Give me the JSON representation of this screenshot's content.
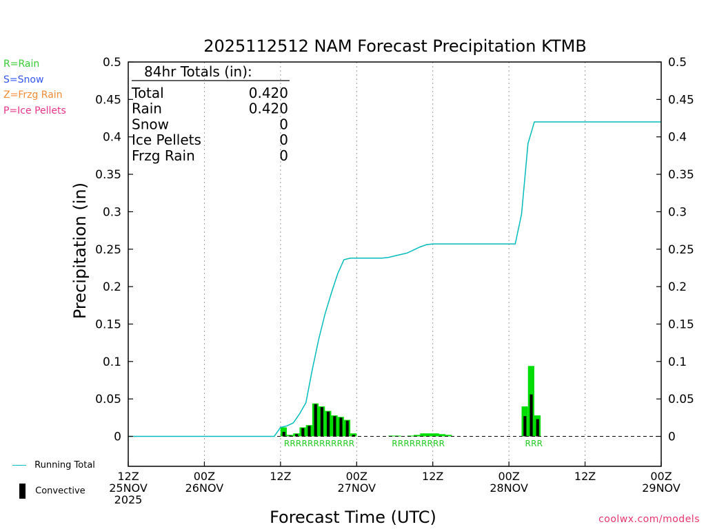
{
  "chart_data": {
    "type": "bar",
    "title": "2025112512 NAM Forecast Precipitation KTMB",
    "xlabel": "Forecast Time (UTC)",
    "ylabel": "Precipitation (in)",
    "ylim": [
      -0.04,
      0.5
    ],
    "yticks": [
      0,
      0.05,
      0.1,
      0.15,
      0.2,
      0.25,
      0.3,
      0.35,
      0.4,
      0.45,
      0.5
    ],
    "ytick_labels": [
      "0",
      "0.05",
      "0.1",
      "0.15",
      "0.2",
      "0.25",
      "0.3",
      "0.35",
      "0.4",
      "0.45",
      "0.5"
    ],
    "xlim_hours": [
      0,
      84
    ],
    "grid": "vertical dotted at each 12 h",
    "x_ticks": [
      {
        "hour": 0,
        "lines": [
          "12Z",
          "25NOV",
          "2025"
        ]
      },
      {
        "hour": 12,
        "lines": [
          "00Z",
          "26NOV"
        ]
      },
      {
        "hour": 24,
        "lines": [
          "12Z"
        ]
      },
      {
        "hour": 36,
        "lines": [
          "00Z",
          "27NOV"
        ]
      },
      {
        "hour": 48,
        "lines": [
          "12Z"
        ]
      },
      {
        "hour": 60,
        "lines": [
          "00Z",
          "28NOV"
        ]
      },
      {
        "hour": 72,
        "lines": [
          "12Z"
        ]
      },
      {
        "hour": 84,
        "lines": [
          "00Z",
          "29NOV"
        ]
      }
    ],
    "series": [
      {
        "name": "Rain",
        "color": "#00dd00",
        "points": [
          [
            24,
            0.012
          ],
          [
            25,
            0.002
          ],
          [
            26,
            0.004
          ],
          [
            27,
            0.012
          ],
          [
            28,
            0.015
          ],
          [
            29,
            0.044
          ],
          [
            30,
            0.04
          ],
          [
            31,
            0.034
          ],
          [
            32,
            0.028
          ],
          [
            33,
            0.026
          ],
          [
            34,
            0.022
          ],
          [
            35,
            0.004
          ],
          [
            41,
            0.001
          ],
          [
            42,
            0.001
          ],
          [
            44,
            0.001
          ],
          [
            45,
            0.002
          ],
          [
            46,
            0.004
          ],
          [
            47,
            0.004
          ],
          [
            48,
            0.004
          ],
          [
            49,
            0.003
          ],
          [
            50,
            0.002
          ],
          [
            62,
            0.04
          ],
          [
            63,
            0.094
          ],
          [
            64,
            0.028
          ]
        ]
      },
      {
        "name": "Convective",
        "color": "#000000",
        "points": [
          [
            24,
            0.006
          ],
          [
            25,
            0.001
          ],
          [
            26,
            0.003
          ],
          [
            27,
            0.011
          ],
          [
            28,
            0.014
          ],
          [
            29,
            0.043
          ],
          [
            30,
            0.039
          ],
          [
            31,
            0.033
          ],
          [
            32,
            0.027
          ],
          [
            33,
            0.025
          ],
          [
            34,
            0.021
          ],
          [
            35,
            0.002
          ],
          [
            62,
            0.027
          ],
          [
            63,
            0.056
          ],
          [
            64,
            0.023
          ]
        ]
      },
      {
        "name": "Running Total",
        "color": "#00bbbb",
        "points": [
          [
            0,
            0
          ],
          [
            23,
            0
          ],
          [
            24,
            0.012
          ],
          [
            25,
            0.014
          ],
          [
            26,
            0.018
          ],
          [
            27,
            0.03
          ],
          [
            28,
            0.045
          ],
          [
            29,
            0.089
          ],
          [
            30,
            0.129
          ],
          [
            31,
            0.163
          ],
          [
            32,
            0.191
          ],
          [
            33,
            0.217
          ],
          [
            34,
            0.236
          ],
          [
            35,
            0.238
          ],
          [
            40,
            0.238
          ],
          [
            41,
            0.239
          ],
          [
            42,
            0.241
          ],
          [
            43,
            0.243
          ],
          [
            44,
            0.245
          ],
          [
            45,
            0.249
          ],
          [
            46,
            0.253
          ],
          [
            47,
            0.256
          ],
          [
            48,
            0.257
          ],
          [
            61,
            0.257
          ],
          [
            62,
            0.297
          ],
          [
            63,
            0.391
          ],
          [
            64,
            0.42
          ],
          [
            84,
            0.42
          ]
        ]
      }
    ],
    "precip_type_markers": [
      {
        "start_hour": 24,
        "text": "RRRRRRRRRRRR"
      },
      {
        "start_hour": 41,
        "text": "RRRRRRRRR"
      },
      {
        "start_hour": 62,
        "text": "RRR"
      }
    ],
    "totals_box": {
      "header": "84hr Totals (in):",
      "rows": [
        {
          "label": "Total",
          "value": "0.420"
        },
        {
          "label": "Rain",
          "value": "0.420"
        },
        {
          "label": "Snow",
          "value": "0"
        },
        {
          "label": "Ice Pellets",
          "value": "0"
        },
        {
          "label": "Frzg Rain",
          "value": "0"
        }
      ]
    }
  },
  "type_legend": [
    {
      "text": "R=Rain",
      "color": "#33cc33"
    },
    {
      "text": "S=Snow",
      "color": "#3355ee"
    },
    {
      "text": "Z=Frzg Rain",
      "color": "#f08a33"
    },
    {
      "text": "P=Ice Pellets",
      "color": "#e8338a"
    }
  ],
  "bottom_legend": {
    "running_total_label": "Running Total",
    "convective_label": "Convective"
  },
  "credit": "coolwx.com/models"
}
